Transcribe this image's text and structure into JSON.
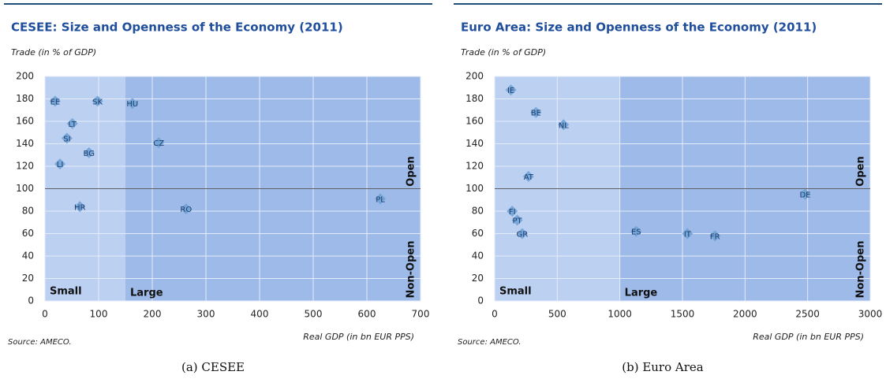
{
  "chart_data": [
    {
      "type": "scatter",
      "title": "CESEE: Size and Openness of the Economy (2011)",
      "ylabel": "Trade (in % of GDP)",
      "xlabel": "Real GDP (in bn EUR PPS)",
      "source": "Source: AMECO.",
      "caption": "(a) CESEE",
      "xlim": [
        0,
        700
      ],
      "xticks": [
        0,
        100,
        200,
        300,
        400,
        500,
        600,
        700
      ],
      "ylim": [
        0,
        200
      ],
      "yticks": [
        0,
        20,
        40,
        60,
        80,
        100,
        120,
        140,
        160,
        180,
        200
      ],
      "grid": true,
      "size_threshold": 150,
      "openness_threshold": 100,
      "region_labels": {
        "small": "Small",
        "large": "Large",
        "open": "Open",
        "non_open": "Non-Open"
      },
      "series": [
        {
          "color": "#6fa3d6",
          "labels": [
            "EE",
            "SK",
            "HU",
            "LT",
            "SI",
            "CZ",
            "BG",
            "LI",
            "HR",
            "RO",
            "PL"
          ],
          "x": [
            19,
            98,
            163,
            51,
            41,
            212,
            82,
            28,
            65,
            263,
            625
          ],
          "values": [
            178,
            178,
            176,
            158,
            145,
            141,
            132,
            122,
            84,
            82,
            91
          ]
        }
      ]
    },
    {
      "type": "scatter",
      "title": "Euro Area: Size and Openness of the Economy (2011)",
      "ylabel": "Trade (in % of GDP)",
      "xlabel": "Real GDP (in bn EUR PPS)",
      "source": "Source: AMECO.",
      "caption": "(b) Euro Area",
      "xlim": [
        0,
        3000
      ],
      "xticks": [
        0,
        500,
        1000,
        1500,
        2000,
        2500,
        3000
      ],
      "ylim": [
        0,
        200
      ],
      "yticks": [
        0,
        20,
        40,
        60,
        80,
        100,
        120,
        140,
        160,
        180,
        200
      ],
      "grid": true,
      "size_threshold": 1000,
      "openness_threshold": 100,
      "region_labels": {
        "small": "Small",
        "large": "Large",
        "open": "Open",
        "non_open": "Non-Open"
      },
      "series": [
        {
          "color": "#6fa3d6",
          "labels": [
            "IE",
            "BE",
            "NL",
            "AT",
            "DE",
            "FI",
            "PT",
            "GR",
            "ES",
            "IT",
            "FR"
          ],
          "x": [
            130,
            330,
            550,
            270,
            2480,
            140,
            180,
            220,
            1130,
            1540,
            1760
          ],
          "values": [
            188,
            168,
            157,
            111,
            95,
            80,
            72,
            60,
            62,
            60,
            58
          ]
        }
      ]
    }
  ]
}
